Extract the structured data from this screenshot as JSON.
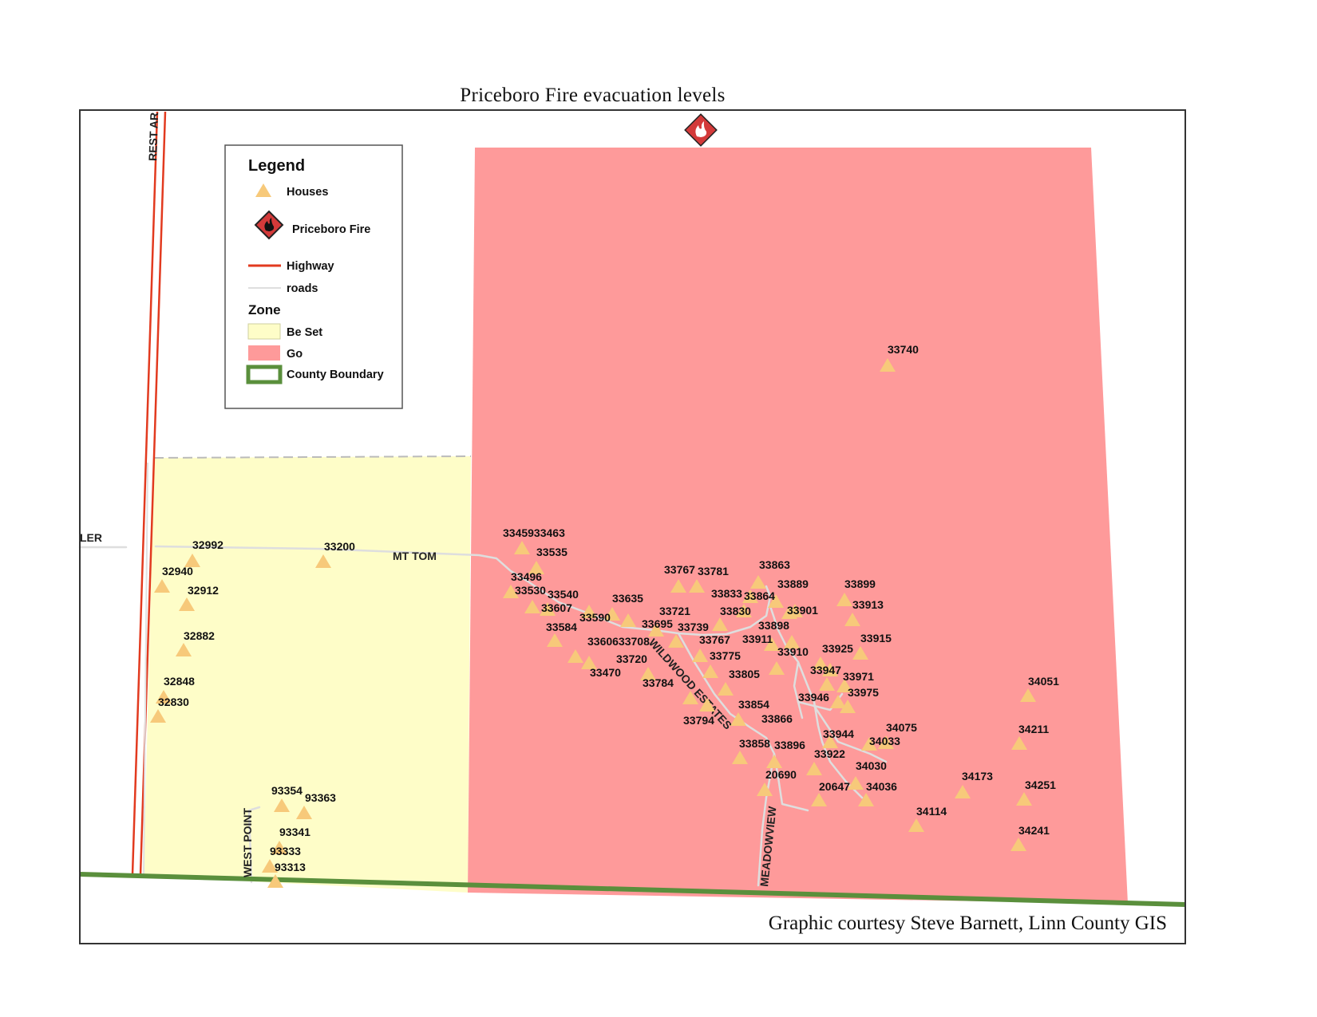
{
  "title": "Priceboro Fire evacuation levels",
  "credit": "Graphic courtesy  Steve Barnett, Linn County GIS",
  "colors": {
    "go_zone": "#fe9a9a",
    "be_set_zone": "#fefdc8",
    "house": "#f7c97a",
    "highway": "#e23a1f",
    "road": "#d9d9d9",
    "county_boundary": "#5a8f3c",
    "fire_icon": "#d33a3a"
  },
  "legend": {
    "heading": "Legend",
    "houses": "Houses",
    "fire": "Priceboro Fire",
    "highway": "Highway",
    "roads": "roads",
    "zone_heading": "Zone",
    "be_set": "Be Set",
    "go": "Go",
    "county_boundary": "County Boundary"
  },
  "road_labels": {
    "rest": "REST AR",
    "ler": "LER",
    "mt_tom": "MT TOM",
    "west_point": "WEST POINT",
    "wildwood": "WILDWOOD ESTATES",
    "meadowview": "MEADOWVIEW"
  },
  "houses": [
    "33740",
    "3345933463",
    "33535",
    "33496",
    "33530",
    "33540",
    "33607",
    "33635",
    "33590",
    "33584",
    "3360633708",
    "33470",
    "33720",
    "33784",
    "33767",
    "33781",
    "33863",
    "33833",
    "33864",
    "33889",
    "33899",
    "33721",
    "33830",
    "33901",
    "33913",
    "33695",
    "33739",
    "33898",
    "33767",
    "33911",
    "33915",
    "33775",
    "33910",
    "33925",
    "33805",
    "33947",
    "33971",
    "33946",
    "33975",
    "33854",
    "33794",
    "33866",
    "34051",
    "33944",
    "34075",
    "34033",
    "34211",
    "33858",
    "33896",
    "33922",
    "34030",
    "20690",
    "20647",
    "34036",
    "34173",
    "34251",
    "34114",
    "34241",
    "32992",
    "33200",
    "32940",
    "32912",
    "32882",
    "32848",
    "32830",
    "93354",
    "93363",
    "93341",
    "93333",
    "93313"
  ]
}
